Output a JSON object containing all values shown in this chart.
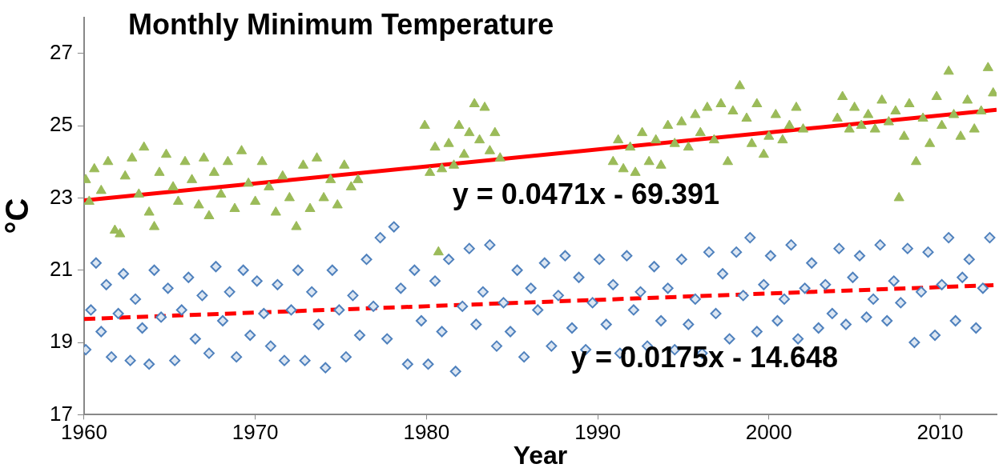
{
  "chart_data": {
    "type": "scatter",
    "title": "Monthly Minimum Temperature",
    "xlabel": "Year",
    "ylabel": "°C",
    "xlim": [
      1960,
      2013.3
    ],
    "xticks": [
      1960,
      1970,
      1980,
      1990,
      2000,
      2010
    ],
    "ylim": [
      17,
      28
    ],
    "yticks": [
      17,
      19,
      21,
      23,
      25,
      27
    ],
    "grid": false,
    "legend": false,
    "annotations": [
      "y = 0.0471x - 69.391",
      "y = 0.0175x - 14.648"
    ],
    "series": [
      {
        "type": "scatter",
        "color": "#9bbb59",
        "marker": "triangle",
        "x": [
          1960.1,
          1960.3,
          1960.6,
          1961.0,
          1961.4,
          1961.8,
          1962.1,
          1962.4,
          1962.8,
          1963.2,
          1963.5,
          1963.8,
          1964.1,
          1964.4,
          1964.8,
          1965.2,
          1965.5,
          1965.9,
          1966.3,
          1966.7,
          1967.0,
          1967.3,
          1967.6,
          1968.0,
          1968.4,
          1968.8,
          1969.2,
          1969.6,
          1970.0,
          1970.4,
          1970.8,
          1971.2,
          1971.6,
          1972.0,
          1972.4,
          1972.8,
          1973.2,
          1973.6,
          1974.0,
          1974.4,
          1974.8,
          1975.2,
          1975.6,
          1976.0,
          1979.9,
          1980.2,
          1980.5,
          1980.7,
          1980.9,
          1981.3,
          1981.6,
          1981.9,
          1982.2,
          1982.5,
          1982.8,
          1983.1,
          1983.4,
          1983.7,
          1984.0,
          1984.3,
          1990.9,
          1991.2,
          1991.5,
          1991.9,
          1992.2,
          1992.6,
          1993.0,
          1993.4,
          1993.7,
          1994.1,
          1994.5,
          1994.9,
          1995.3,
          1995.7,
          1996.0,
          1996.4,
          1996.8,
          1997.2,
          1997.6,
          1997.9,
          1998.3,
          1998.7,
          1999.0,
          1999.3,
          1999.7,
          2000.0,
          2000.4,
          2000.8,
          2001.2,
          2001.6,
          2002.0,
          2004.0,
          2004.3,
          2004.7,
          2005.0,
          2005.4,
          2005.8,
          2006.2,
          2006.6,
          2007.0,
          2007.4,
          2007.6,
          2007.9,
          2008.2,
          2008.6,
          2009.0,
          2009.4,
          2009.8,
          2010.1,
          2010.5,
          2010.8,
          2011.2,
          2011.6,
          2012.0,
          2012.4,
          2012.8,
          2013.1
        ],
        "values": [
          23.5,
          22.9,
          23.8,
          23.2,
          24.0,
          22.1,
          22.0,
          23.6,
          24.1,
          23.1,
          24.4,
          22.6,
          22.2,
          23.7,
          24.2,
          23.3,
          22.9,
          24.0,
          23.5,
          22.8,
          24.1,
          22.5,
          23.7,
          23.1,
          24.0,
          22.7,
          24.3,
          23.4,
          22.9,
          24.0,
          23.3,
          22.6,
          23.6,
          23.0,
          22.2,
          23.9,
          22.7,
          24.1,
          23.0,
          23.5,
          22.8,
          23.9,
          23.3,
          23.5,
          25.0,
          23.7,
          24.4,
          21.5,
          23.8,
          24.5,
          23.9,
          25.0,
          24.2,
          24.8,
          25.6,
          24.6,
          25.5,
          24.3,
          24.8,
          24.1,
          24.0,
          24.6,
          23.8,
          24.4,
          23.7,
          24.8,
          24.0,
          24.6,
          23.9,
          25.0,
          24.5,
          25.1,
          24.4,
          25.3,
          24.8,
          25.5,
          24.6,
          25.6,
          24.0,
          25.4,
          26.1,
          25.2,
          24.5,
          25.6,
          24.2,
          24.7,
          25.3,
          24.6,
          25.0,
          25.5,
          24.9,
          25.2,
          25.8,
          24.9,
          25.5,
          25.0,
          25.3,
          24.9,
          25.7,
          25.1,
          25.4,
          23.0,
          24.7,
          25.6,
          24.0,
          25.2,
          24.5,
          25.8,
          25.0,
          26.5,
          25.3,
          24.7,
          25.7,
          24.9,
          25.4,
          26.6,
          25.9
        ]
      },
      {
        "type": "scatter",
        "color": "#4f81bd",
        "marker": "diamond",
        "x": [
          1960.1,
          1960.4,
          1960.7,
          1961.0,
          1961.3,
          1961.6,
          1962.0,
          1962.3,
          1962.7,
          1963.0,
          1963.4,
          1963.8,
          1964.1,
          1964.5,
          1964.9,
          1965.3,
          1965.7,
          1966.1,
          1966.5,
          1966.9,
          1967.3,
          1967.7,
          1968.1,
          1968.5,
          1968.9,
          1969.3,
          1969.7,
          1970.1,
          1970.5,
          1970.9,
          1971.3,
          1971.7,
          1972.1,
          1972.5,
          1972.9,
          1973.3,
          1973.7,
          1974.1,
          1974.5,
          1974.9,
          1975.3,
          1975.7,
          1976.1,
          1976.5,
          1976.9,
          1977.3,
          1977.7,
          1978.1,
          1978.5,
          1978.9,
          1979.3,
          1979.7,
          1980.1,
          1980.5,
          1980.9,
          1981.3,
          1981.7,
          1982.1,
          1982.5,
          1982.9,
          1983.3,
          1983.7,
          1984.1,
          1984.5,
          1984.9,
          1985.3,
          1985.7,
          1986.1,
          1986.5,
          1986.9,
          1987.3,
          1987.7,
          1988.1,
          1988.5,
          1988.9,
          1989.3,
          1989.7,
          1990.1,
          1990.5,
          1990.9,
          1991.3,
          1991.7,
          1992.1,
          1992.5,
          1992.9,
          1993.3,
          1993.7,
          1994.1,
          1994.5,
          1994.9,
          1995.3,
          1995.7,
          1996.1,
          1996.5,
          1996.9,
          1997.3,
          1997.7,
          1998.1,
          1998.5,
          1998.9,
          1999.3,
          1999.7,
          2000.1,
          2000.5,
          2000.9,
          2001.3,
          2001.7,
          2002.1,
          2002.5,
          2002.9,
          2003.3,
          2003.7,
          2004.1,
          2004.5,
          2004.9,
          2005.3,
          2005.7,
          2006.1,
          2006.5,
          2006.9,
          2007.3,
          2007.7,
          2008.1,
          2008.5,
          2008.9,
          2009.3,
          2009.7,
          2010.1,
          2010.5,
          2010.9,
          2011.3,
          2011.7,
          2012.1,
          2012.5,
          2012.9
        ],
        "values": [
          18.8,
          19.9,
          21.2,
          19.3,
          20.6,
          18.6,
          19.8,
          20.9,
          18.5,
          20.2,
          19.4,
          18.4,
          21.0,
          19.7,
          20.5,
          18.5,
          19.9,
          20.8,
          19.1,
          20.3,
          18.7,
          21.1,
          19.6,
          20.4,
          18.6,
          21.0,
          19.2,
          20.7,
          19.8,
          18.9,
          20.6,
          18.5,
          19.9,
          21.0,
          18.5,
          20.4,
          19.5,
          18.3,
          21.0,
          19.9,
          18.6,
          20.3,
          19.2,
          21.3,
          20.0,
          21.9,
          19.1,
          22.2,
          20.5,
          18.4,
          21.0,
          19.6,
          18.4,
          20.7,
          19.3,
          21.3,
          18.2,
          20.0,
          21.6,
          19.5,
          20.4,
          21.7,
          18.9,
          20.1,
          19.3,
          21.0,
          18.6,
          20.5,
          19.9,
          21.2,
          18.9,
          20.3,
          21.4,
          19.4,
          20.8,
          18.8,
          20.1,
          21.3,
          19.5,
          20.6,
          18.7,
          21.4,
          19.9,
          20.4,
          18.9,
          21.1,
          19.6,
          20.5,
          18.8,
          21.3,
          19.5,
          20.2,
          18.7,
          21.5,
          19.8,
          20.9,
          19.1,
          21.5,
          20.3,
          21.9,
          19.3,
          20.6,
          21.4,
          19.6,
          20.2,
          21.7,
          19.1,
          20.5,
          21.2,
          19.4,
          20.6,
          19.8,
          21.6,
          19.5,
          20.8,
          21.4,
          19.7,
          20.2,
          21.7,
          19.6,
          20.7,
          20.1,
          21.6,
          19.0,
          20.4,
          21.5,
          19.2,
          20.6,
          21.9,
          19.6,
          20.8,
          21.3,
          19.4,
          20.5,
          21.9
        ]
      },
      {
        "type": "line",
        "color": "#ff0000",
        "line_style": "solid",
        "marker": "none",
        "x": [
          1960,
          2013.3
        ],
        "values": [
          22.93,
          25.44
        ]
      },
      {
        "type": "line",
        "color": "#ff0000",
        "line_style": "dashed",
        "marker": "none",
        "x": [
          1960,
          2013.3
        ],
        "values": [
          19.65,
          20.59
        ]
      }
    ]
  }
}
